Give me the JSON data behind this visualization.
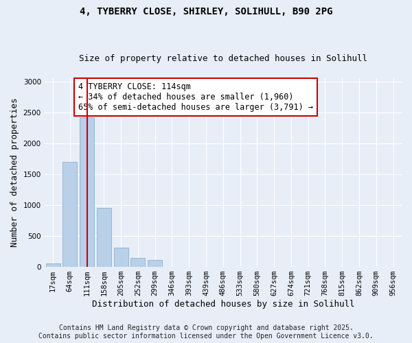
{
  "title_line1": "4, TYBERRY CLOSE, SHIRLEY, SOLIHULL, B90 2PG",
  "title_line2": "Size of property relative to detached houses in Solihull",
  "xlabel": "Distribution of detached houses by size in Solihull",
  "ylabel": "Number of detached properties",
  "categories": [
    "17sqm",
    "64sqm",
    "111sqm",
    "158sqm",
    "205sqm",
    "252sqm",
    "299sqm",
    "346sqm",
    "393sqm",
    "439sqm",
    "486sqm",
    "533sqm",
    "580sqm",
    "627sqm",
    "674sqm",
    "721sqm",
    "768sqm",
    "815sqm",
    "862sqm",
    "909sqm",
    "956sqm"
  ],
  "values": [
    60,
    1700,
    2420,
    950,
    310,
    150,
    110,
    0,
    0,
    0,
    0,
    0,
    0,
    0,
    0,
    0,
    0,
    0,
    0,
    0,
    0
  ],
  "bar_color": "#b8d0e8",
  "bar_edge_color": "#8ab0d0",
  "vline_x": 2,
  "vline_color": "#cc0000",
  "annotation_text": "4 TYBERRY CLOSE: 114sqm\n← 34% of detached houses are smaller (1,960)\n65% of semi-detached houses are larger (3,791) →",
  "annotation_box_color": "#ffffff",
  "annotation_box_edge_color": "#cc0000",
  "ylim": [
    0,
    3050
  ],
  "yticks": [
    0,
    500,
    1000,
    1500,
    2000,
    2500,
    3000
  ],
  "background_color": "#e8eef8",
  "grid_color": "#ffffff",
  "footer_line1": "Contains HM Land Registry data © Crown copyright and database right 2025.",
  "footer_line2": "Contains public sector information licensed under the Open Government Licence v3.0.",
  "title_fontsize": 10,
  "subtitle_fontsize": 9,
  "annotation_fontsize": 8.5,
  "axis_label_fontsize": 9,
  "tick_fontsize": 7.5,
  "footer_fontsize": 7
}
